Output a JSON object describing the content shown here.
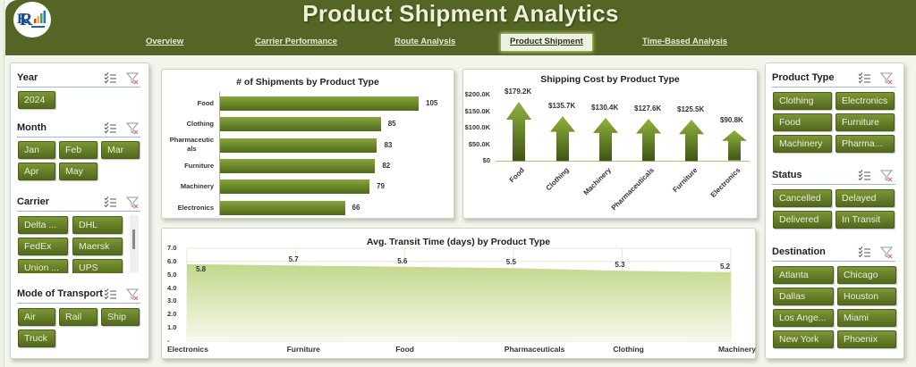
{
  "header": {
    "title": "Product Shipment Analytics",
    "logo_icon": "rk-logo-icon",
    "nav": [
      {
        "label": "Overview",
        "active": false
      },
      {
        "label": "Carrier Performance",
        "active": false
      },
      {
        "label": "Route Analysis",
        "active": false
      },
      {
        "label": "Product Shipment",
        "active": true
      },
      {
        "label": "Time-Based Analysis",
        "active": false
      }
    ]
  },
  "left_slicers": {
    "year": {
      "title": "Year",
      "items": [
        "2024"
      ]
    },
    "month": {
      "title": "Month",
      "items": [
        "Jan",
        "Feb",
        "Mar",
        "Apr",
        "May"
      ]
    },
    "carrier": {
      "title": "Carrier",
      "items": [
        "Delta ...",
        "DHL",
        "FedEx",
        "Maersk",
        "Union ...",
        "UPS"
      ]
    },
    "mode": {
      "title": "Mode of Transport",
      "items": [
        "Air",
        "Rail",
        "Ship",
        "Truck"
      ]
    }
  },
  "right_slicers": {
    "product_type": {
      "title": "Product Type",
      "items": [
        "Clothing",
        "Electronics",
        "Food",
        "Furniture",
        "Machinery",
        "Pharma..."
      ]
    },
    "status": {
      "title": "Status",
      "items": [
        "Cancelled",
        "Delayed",
        "Delivered",
        "In Transit"
      ]
    },
    "destination": {
      "title": "Destination",
      "items": [
        "Atlanta",
        "Chicago",
        "Dallas",
        "Houston",
        "Los Ange...",
        "Miami",
        "New York",
        "Phoenix"
      ]
    }
  },
  "slicer_icons": {
    "multi_select": "multi-select-icon",
    "clear_filter": "clear-filter-icon"
  },
  "colors": {
    "header_bg": "#546525",
    "chip_top": "#7b9636",
    "chip_bottom": "#52681c",
    "bar_top": "#86a53d",
    "bar_bottom": "#4f6a19",
    "area_fill": "#c9dc98",
    "active_tab_glow": "#c7db73"
  },
  "chart_data": [
    {
      "type": "bar",
      "orientation": "horizontal",
      "title": "# of Shipments by Product Type",
      "categories": [
        "Food",
        "Clothing",
        "Pharmaceuticals",
        "Furniture",
        "Machinery",
        "Electronics"
      ],
      "category_labels": [
        "Food",
        "Clothing",
        "Pharmaceutic\nals",
        "Furniture",
        "Machinery",
        "Electronics"
      ],
      "values": [
        105,
        85,
        83,
        82,
        79,
        66
      ],
      "value_labels": [
        "105",
        "85",
        "83",
        "82",
        "79",
        "66"
      ],
      "xlabel": "",
      "ylabel": "",
      "grid": false,
      "legend": "none"
    },
    {
      "type": "bar",
      "orientation": "vertical",
      "marker": "arrow",
      "title": "Shipping Cost by Product Type",
      "categories": [
        "Food",
        "Clothing",
        "Machinery",
        "Pharmaceuticals",
        "Furniture",
        "Electronics"
      ],
      "values": [
        179200,
        135700,
        130400,
        127600,
        125500,
        90800
      ],
      "value_labels": [
        "$179.2K",
        "$135.7K",
        "$130.4K",
        "$127.6K",
        "$125.5K",
        "$90.8K"
      ],
      "y_ticks": [
        "$200.0K",
        "$150.0K",
        "$100.0K",
        "$50.0K",
        "$0"
      ],
      "ylim": [
        0,
        200000
      ],
      "grid": false,
      "legend": "none"
    },
    {
      "type": "area",
      "title": "Avg. Transit Time (days) by Product Type",
      "categories": [
        "Electronics",
        "Furniture",
        "Food",
        "Pharmaceuticals",
        "Clothing",
        "Machinery"
      ],
      "values": [
        5.8,
        5.7,
        5.6,
        5.5,
        5.3,
        5.2
      ],
      "value_labels": [
        "5.8",
        "5.7",
        "5.6",
        "5.5",
        "5.3",
        "5.2"
      ],
      "y_ticks": [
        "7.0",
        "6.0",
        "5.0",
        "4.0",
        "3.0",
        "2.0",
        "1.0",
        "-"
      ],
      "ylim": [
        0,
        7
      ],
      "grid": true,
      "legend": "none"
    }
  ]
}
